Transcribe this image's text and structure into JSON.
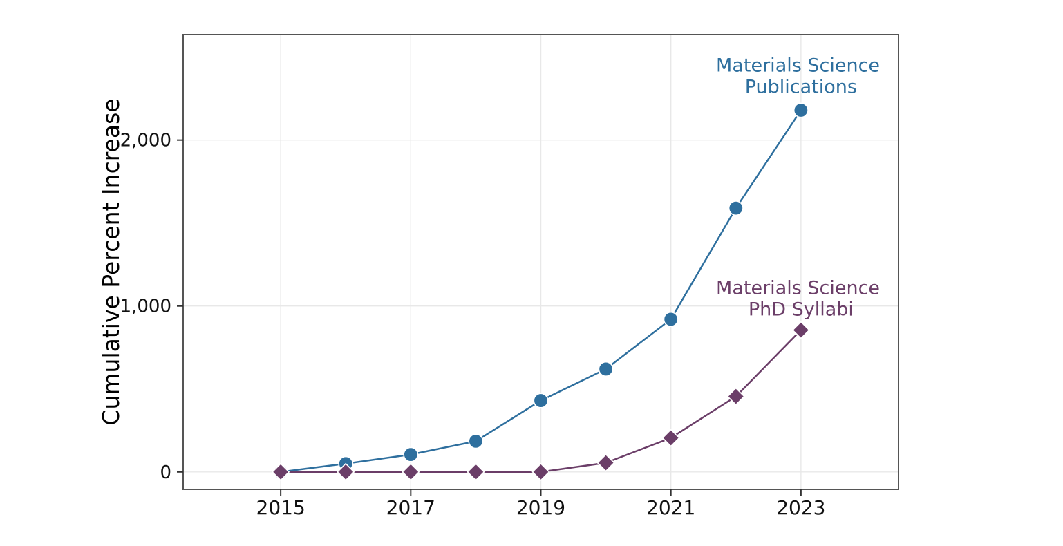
{
  "chart_data": {
    "type": "line",
    "x": [
      2015,
      2016,
      2017,
      2018,
      2019,
      2020,
      2021,
      2022,
      2023
    ],
    "series": [
      {
        "name": "Materials Science Publications",
        "marker": "circle",
        "color": "#2e6f9e",
        "values": [
          0,
          50,
          105,
          185,
          430,
          620,
          920,
          1590,
          2180
        ]
      },
      {
        "name": "Materials Science PhD Syllabi",
        "marker": "diamond",
        "color": "#6b3e68",
        "values": [
          0,
          0,
          0,
          0,
          0,
          55,
          205,
          455,
          855
        ]
      }
    ],
    "title": "",
    "xlabel": "",
    "ylabel": "Cumulative Percent Increase",
    "x_ticks": {
      "values": [
        2015,
        2017,
        2019,
        2021,
        2023
      ],
      "labels": [
        "2015",
        "2017",
        "2019",
        "2021",
        "2023"
      ]
    },
    "y_ticks": {
      "values": [
        0,
        1000,
        2000
      ],
      "labels": [
        "0",
        "1,000",
        "2,000"
      ]
    },
    "xlim": [
      2013.5,
      2024.5
    ],
    "ylim": [
      -105,
      2636
    ],
    "grid": true,
    "legend_position": "inline-annotations",
    "annotations": [
      {
        "lines": [
          "Materials Science",
          "Publications"
        ],
        "x": 2023,
        "y": 2400,
        "color": "#2e6f9e"
      },
      {
        "lines": [
          "Materials Science",
          "PhD Syllabi"
        ],
        "x": 2023,
        "y": 1060,
        "color": "#6b3e68"
      }
    ]
  },
  "colors": {
    "background": "#ffffff",
    "spine": "#555555",
    "grid": "#e8e8e8",
    "tick": "#333333",
    "tick_label": "#111111"
  }
}
